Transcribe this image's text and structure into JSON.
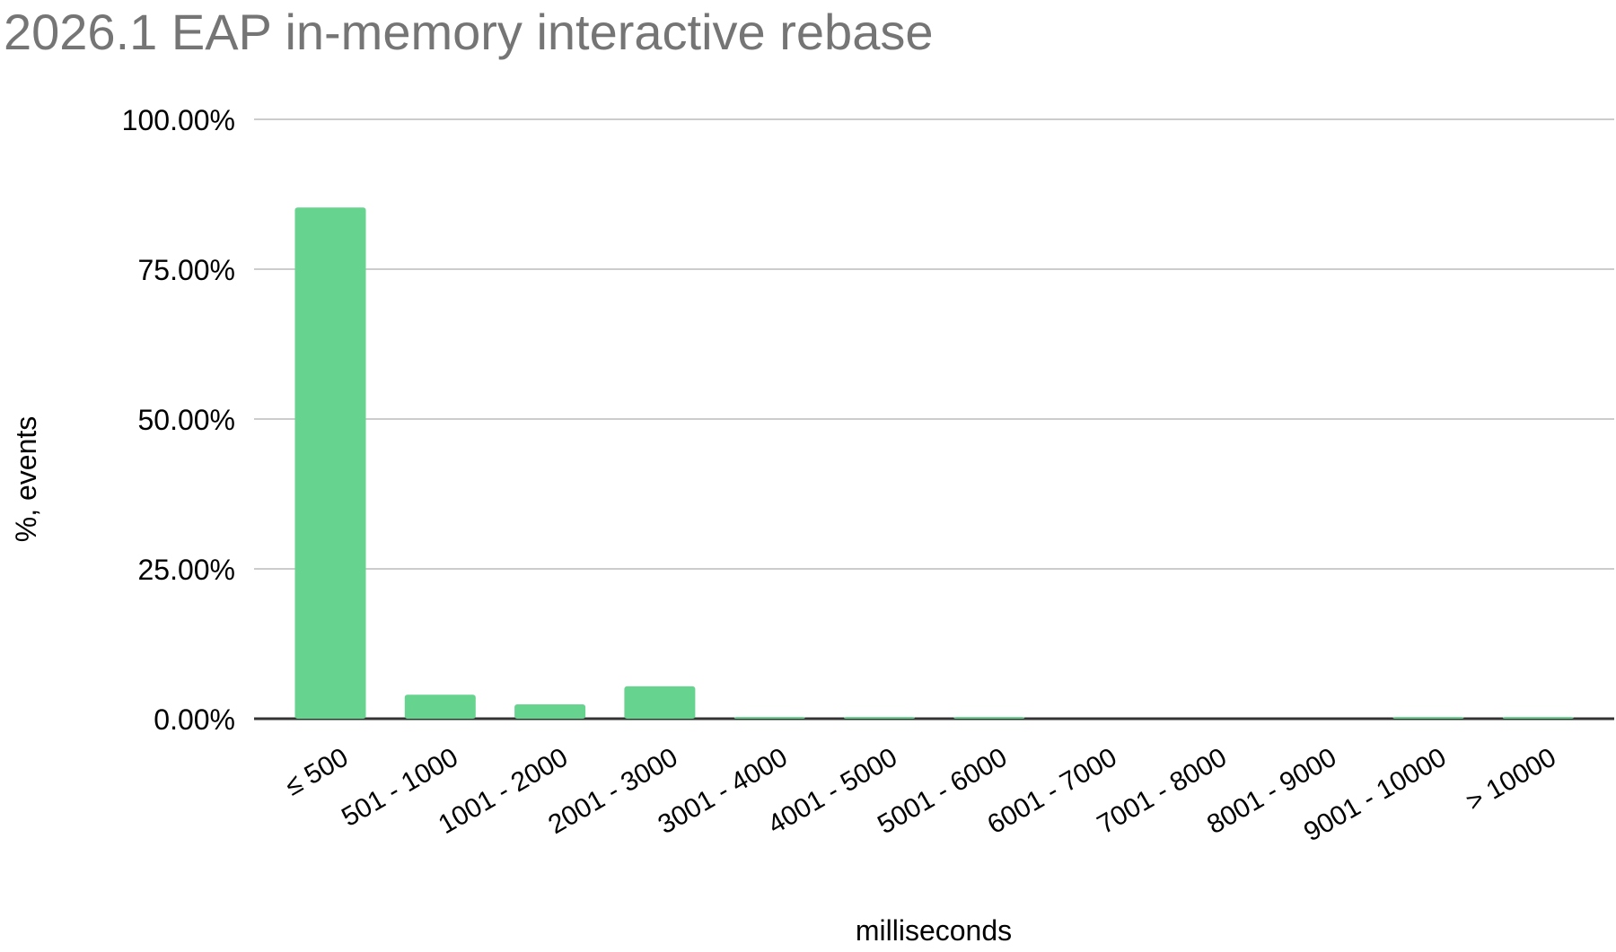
{
  "chart_data": {
    "type": "bar",
    "title": "2026.1 EAP in-memory interactive rebase",
    "xlabel": "milliseconds",
    "ylabel": "%, events",
    "ylim": [
      0,
      100
    ],
    "yticks": [
      "0.00%",
      "25.00%",
      "50.00%",
      "75.00%",
      "100.00%"
    ],
    "ytick_values": [
      0,
      25,
      50,
      75,
      100
    ],
    "grid": true,
    "categories": [
      "≤ 500",
      "501 - 1000",
      "1001 - 2000",
      "2001 - 3000",
      "3001 - 4000",
      "4001 - 5000",
      "5001 - 6000",
      "6001 - 7000",
      "7001 - 8000",
      "8001 - 9000",
      "9001 - 10000",
      "> 10000"
    ],
    "values": [
      85.3,
      4.0,
      2.4,
      5.4,
      0.2,
      0.2,
      0.2,
      0,
      0,
      0,
      0.2,
      0.2
    ],
    "colors": {
      "bar": "#66d38e",
      "title": "#757575",
      "grid": "#cccccc",
      "axis": "#333333"
    }
  }
}
